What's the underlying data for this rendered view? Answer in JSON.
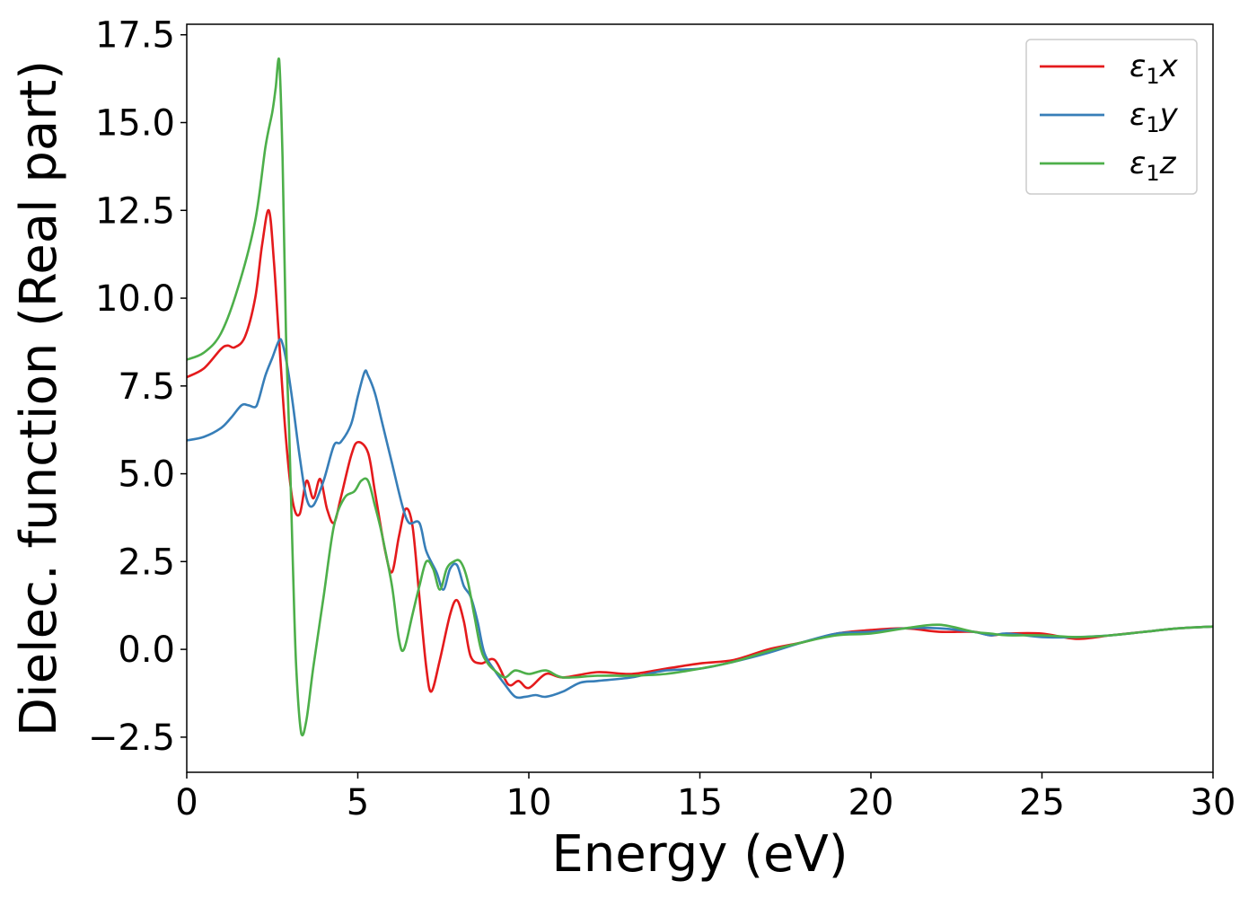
{
  "chart_data": {
    "type": "line",
    "xlabel": "Energy (eV)",
    "ylabel": "Dielec. function (Real part)",
    "xlim": [
      0,
      30
    ],
    "ylim": [
      -3.5,
      17.8
    ],
    "xticks": [
      0,
      5,
      10,
      15,
      20,
      25,
      30
    ],
    "xtick_labels": [
      "0",
      "5",
      "10",
      "15",
      "20",
      "25",
      "30"
    ],
    "yticks": [
      -2.5,
      0.0,
      2.5,
      5.0,
      7.5,
      10.0,
      12.5,
      15.0,
      17.5
    ],
    "ytick_labels": [
      "−2.5",
      "0.0",
      "2.5",
      "5.0",
      "7.5",
      "10.0",
      "12.5",
      "15.0",
      "17.5"
    ],
    "grid": false,
    "legend_position": "top-right",
    "series": [
      {
        "name": "ε₁x",
        "legend_base": "ε",
        "legend_sub": "1",
        "legend_suffix": "x",
        "color": "#e41a1c",
        "x": [
          0,
          0.5,
          1.0,
          1.2,
          1.4,
          1.7,
          2.0,
          2.2,
          2.4,
          2.55,
          2.7,
          2.9,
          3.1,
          3.3,
          3.5,
          3.7,
          3.9,
          4.1,
          4.3,
          4.5,
          4.8,
          5.0,
          5.3,
          5.5,
          5.8,
          6.0,
          6.2,
          6.4,
          6.6,
          6.8,
          7.0,
          7.15,
          7.4,
          7.7,
          7.9,
          8.1,
          8.3,
          8.6,
          9.0,
          9.4,
          9.7,
          10.0,
          10.5,
          11.0,
          12.0,
          13.0,
          14.0,
          15.0,
          16.0,
          17.0,
          18.0,
          19.0,
          20.0,
          21.0,
          22.0,
          23.0,
          23.5,
          24.0,
          25.0,
          26.0,
          27.0,
          28.0,
          29.0,
          30.0
        ],
        "y": [
          7.75,
          8.0,
          8.55,
          8.65,
          8.6,
          8.9,
          10.0,
          11.5,
          12.5,
          11.0,
          8.8,
          6.0,
          4.2,
          3.85,
          4.8,
          4.3,
          4.85,
          4.0,
          3.6,
          4.3,
          5.5,
          5.9,
          5.6,
          4.5,
          2.8,
          2.2,
          3.2,
          4.0,
          3.5,
          1.5,
          -0.5,
          -1.2,
          -0.3,
          1.0,
          1.4,
          0.8,
          -0.2,
          -0.4,
          -0.3,
          -1.0,
          -0.9,
          -1.1,
          -0.7,
          -0.8,
          -0.65,
          -0.7,
          -0.55,
          -0.4,
          -0.3,
          0.0,
          0.2,
          0.45,
          0.55,
          0.6,
          0.5,
          0.5,
          0.4,
          0.45,
          0.45,
          0.3,
          0.4,
          0.5,
          0.6,
          0.65
        ]
      },
      {
        "name": "ε₁y",
        "legend_base": "ε",
        "legend_sub": "1",
        "legend_suffix": "y",
        "color": "#377eb8",
        "x": [
          0,
          0.5,
          1.0,
          1.3,
          1.6,
          1.8,
          2.0,
          2.1,
          2.3,
          2.5,
          2.7,
          2.8,
          2.95,
          3.1,
          3.3,
          3.5,
          3.7,
          4.0,
          4.3,
          4.5,
          4.8,
          5.0,
          5.2,
          5.3,
          5.5,
          5.7,
          6.0,
          6.3,
          6.5,
          6.8,
          7.0,
          7.3,
          7.5,
          7.7,
          7.9,
          8.1,
          8.3,
          8.5,
          8.7,
          9.0,
          9.3,
          9.6,
          9.9,
          10.2,
          10.5,
          11.0,
          11.5,
          12.0,
          13.0,
          14.0,
          15.0,
          16.0,
          17.0,
          18.0,
          19.0,
          20.0,
          21.0,
          22.0,
          23.0,
          23.5,
          24.0,
          25.0,
          26.0,
          27.0,
          28.0,
          29.0,
          30.0
        ],
        "y": [
          5.95,
          6.05,
          6.3,
          6.6,
          6.95,
          6.95,
          6.9,
          7.1,
          7.8,
          8.3,
          8.8,
          8.7,
          8.0,
          7.0,
          5.5,
          4.3,
          4.1,
          4.8,
          5.8,
          5.9,
          6.4,
          7.2,
          7.9,
          7.8,
          7.3,
          6.5,
          5.3,
          4.1,
          3.6,
          3.6,
          2.8,
          2.2,
          1.7,
          2.3,
          2.4,
          1.8,
          1.5,
          0.8,
          -0.1,
          -0.6,
          -1.0,
          -1.35,
          -1.35,
          -1.3,
          -1.35,
          -1.2,
          -0.95,
          -0.9,
          -0.8,
          -0.6,
          -0.55,
          -0.35,
          -0.1,
          0.2,
          0.45,
          0.5,
          0.6,
          0.6,
          0.5,
          0.4,
          0.45,
          0.35,
          0.35,
          0.4,
          0.5,
          0.6,
          0.65
        ]
      },
      {
        "name": "ε₁z",
        "legend_base": "ε",
        "legend_sub": "1",
        "legend_suffix": "z",
        "color": "#4daf4a",
        "x": [
          0,
          0.5,
          1.0,
          1.5,
          2.0,
          2.3,
          2.5,
          2.6,
          2.7,
          2.8,
          2.9,
          3.0,
          3.1,
          3.2,
          3.35,
          3.5,
          3.7,
          4.0,
          4.3,
          4.6,
          4.9,
          5.1,
          5.3,
          5.5,
          5.7,
          6.0,
          6.2,
          6.35,
          6.6,
          6.8,
          7.0,
          7.2,
          7.4,
          7.6,
          7.8,
          8.0,
          8.2,
          8.4,
          8.6,
          8.8,
          9.0,
          9.3,
          9.6,
          10.0,
          10.5,
          11.0,
          12.0,
          13.0,
          14.0,
          15.0,
          16.0,
          17.0,
          18.0,
          19.0,
          20.0,
          21.0,
          22.0,
          23.0,
          23.5,
          24.0,
          25.0,
          26.0,
          27.0,
          28.0,
          29.0,
          30.0
        ],
        "y": [
          8.25,
          8.45,
          9.0,
          10.3,
          12.2,
          14.3,
          15.3,
          16.0,
          16.8,
          14.0,
          9.0,
          6.0,
          2.5,
          -0.5,
          -2.4,
          -2.0,
          -0.5,
          1.5,
          3.5,
          4.3,
          4.5,
          4.8,
          4.8,
          4.1,
          3.3,
          1.8,
          0.3,
          0.0,
          1.0,
          1.8,
          2.5,
          2.3,
          1.7,
          2.3,
          2.5,
          2.5,
          2.0,
          1.0,
          0.0,
          -0.4,
          -0.6,
          -0.8,
          -0.6,
          -0.7,
          -0.6,
          -0.8,
          -0.75,
          -0.75,
          -0.7,
          -0.55,
          -0.35,
          -0.05,
          0.2,
          0.4,
          0.45,
          0.6,
          0.7,
          0.5,
          0.45,
          0.4,
          0.4,
          0.35,
          0.4,
          0.5,
          0.6,
          0.65
        ]
      }
    ]
  }
}
